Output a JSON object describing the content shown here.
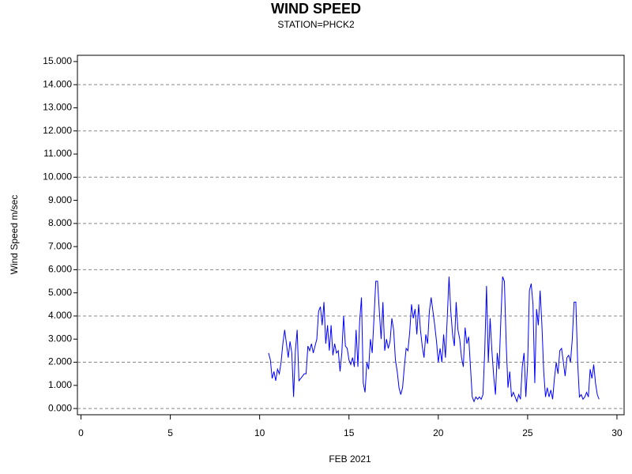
{
  "chart_data": {
    "type": "line",
    "title": "WIND SPEED",
    "subtitle": "STATION=PHCK2",
    "x_label": "FEB 2021",
    "y_label": "Wind Speed m/sec",
    "xlim": [
      -0.2,
      30.4
    ],
    "ylim": [
      -0.27,
      15.27
    ],
    "xticks": [
      0,
      5,
      10,
      15,
      20,
      25,
      30
    ],
    "yticks": [
      {
        "value": 0,
        "label": "0.000"
      },
      {
        "value": 1,
        "label": "1.000"
      },
      {
        "value": 2,
        "label": "2.000"
      },
      {
        "value": 3,
        "label": "3.000"
      },
      {
        "value": 4,
        "label": "4.000"
      },
      {
        "value": 5,
        "label": "5.000"
      },
      {
        "value": 6,
        "label": "6.000"
      },
      {
        "value": 7,
        "label": "7.000"
      },
      {
        "value": 8,
        "label": "8.000"
      },
      {
        "value": 9,
        "label": "9.000"
      },
      {
        "value": 10,
        "label": "10.000"
      },
      {
        "value": 11,
        "label": "11.000"
      },
      {
        "value": 12,
        "label": "12.000"
      },
      {
        "value": 13,
        "label": "13.000"
      },
      {
        "value": 14,
        "label": "14.000"
      },
      {
        "value": 15,
        "label": "15.000"
      }
    ],
    "grid_y": [
      0,
      2,
      4,
      6,
      8,
      10,
      12,
      14
    ],
    "series": [
      {
        "color": "#0000ff",
        "x": [
          10.5,
          10.6,
          10.7,
          10.8,
          10.9,
          11.0,
          11.1,
          11.2,
          11.3,
          11.4,
          11.5,
          11.6,
          11.7,
          11.8,
          11.9,
          12.0,
          12.1,
          12.2,
          12.5,
          12.6,
          12.7,
          12.8,
          12.9,
          13.0,
          13.1,
          13.2,
          13.3,
          13.4,
          13.5,
          13.6,
          13.7,
          13.8,
          13.9,
          14.0,
          14.1,
          14.2,
          14.3,
          14.4,
          14.5,
          14.6,
          14.7,
          14.8,
          14.9,
          15.0,
          15.1,
          15.2,
          15.3,
          15.4,
          15.5,
          15.6,
          15.7,
          15.8,
          15.9,
          16.0,
          16.1,
          16.2,
          16.3,
          16.4,
          16.5,
          16.6,
          16.7,
          16.8,
          16.9,
          17.0,
          17.1,
          17.2,
          17.3,
          17.4,
          17.5,
          17.6,
          17.7,
          17.8,
          17.9,
          18.0,
          18.1,
          18.2,
          18.3,
          18.4,
          18.5,
          18.6,
          18.7,
          18.8,
          18.9,
          19.0,
          19.1,
          19.2,
          19.3,
          19.4,
          19.5,
          19.6,
          19.7,
          19.8,
          19.9,
          20.0,
          20.1,
          20.2,
          20.3,
          20.4,
          20.5,
          20.6,
          20.7,
          20.8,
          20.9,
          21.0,
          21.1,
          21.2,
          21.3,
          21.4,
          21.5,
          21.6,
          21.7,
          21.8,
          21.9,
          22.0,
          22.1,
          22.2,
          22.3,
          22.4,
          22.5,
          22.6,
          22.7,
          22.8,
          22.9,
          23.0,
          23.1,
          23.2,
          23.3,
          23.4,
          23.5,
          23.6,
          23.7,
          23.8,
          23.9,
          24.0,
          24.1,
          24.2,
          24.3,
          24.4,
          24.5,
          24.6,
          24.7,
          24.8,
          24.9,
          25.0,
          25.1,
          25.2,
          25.3,
          25.4,
          25.5,
          25.6,
          25.7,
          25.8,
          25.9,
          26.0,
          26.1,
          26.2,
          26.3,
          26.4,
          26.5,
          26.6,
          26.7,
          26.8,
          26.9,
          27.0,
          27.1,
          27.2,
          27.3,
          27.4,
          27.5,
          27.6,
          27.7,
          27.8,
          27.9,
          28.0,
          28.1,
          28.2,
          28.3,
          28.4,
          28.5,
          28.6,
          28.7,
          28.8,
          28.9,
          29.0
        ],
        "values": [
          2.4,
          2.1,
          1.3,
          1.6,
          1.2,
          1.7,
          1.5,
          2.0,
          2.8,
          3.4,
          2.8,
          2.2,
          2.9,
          2.4,
          0.5,
          2.5,
          3.4,
          1.2,
          1.5,
          1.5,
          2.7,
          2.5,
          2.8,
          2.4,
          2.7,
          3.0,
          4.2,
          4.4,
          3.6,
          4.6,
          2.8,
          3.6,
          2.5,
          3.6,
          2.3,
          2.8,
          2.4,
          2.5,
          1.6,
          2.4,
          4.0,
          2.7,
          2.6,
          2.1,
          1.9,
          2.2,
          1.8,
          3.4,
          1.8,
          3.8,
          4.8,
          1.1,
          0.7,
          2.0,
          1.7,
          3.0,
          2.4,
          3.9,
          5.5,
          5.5,
          4.2,
          3.0,
          4.6,
          2.5,
          3.0,
          2.6,
          2.9,
          3.9,
          3.4,
          2.1,
          1.6,
          0.9,
          0.6,
          0.9,
          1.8,
          2.6,
          2.5,
          3.3,
          4.5,
          3.9,
          4.3,
          3.2,
          4.5,
          3.4,
          2.7,
          2.2,
          3.2,
          2.8,
          4.2,
          4.8,
          4.2,
          3.6,
          2.9,
          2.0,
          2.6,
          2.0,
          3.2,
          2.2,
          3.9,
          5.7,
          4.2,
          3.2,
          2.7,
          4.6,
          3.4,
          3.0,
          2.2,
          1.8,
          3.5,
          2.8,
          3.1,
          1.8,
          0.5,
          0.3,
          0.5,
          0.4,
          0.5,
          0.4,
          0.6,
          2.5,
          5.3,
          2.0,
          3.9,
          2.5,
          1.4,
          0.6,
          2.4,
          1.7,
          3.8,
          5.7,
          5.5,
          2.8,
          0.9,
          1.6,
          0.5,
          0.7,
          0.5,
          0.3,
          0.6,
          0.4,
          1.8,
          2.4,
          0.5,
          1.9,
          5.1,
          5.4,
          4.5,
          1.1,
          4.3,
          3.6,
          5.1,
          3.6,
          1.6,
          0.5,
          0.9,
          0.5,
          0.8,
          0.4,
          1.3,
          2.0,
          1.5,
          2.5,
          2.6,
          2.0,
          1.4,
          2.2,
          2.3,
          2.0,
          3.0,
          4.6,
          4.6,
          2.0,
          0.5,
          0.6,
          0.4,
          0.5,
          0.7,
          0.5,
          1.7,
          1.3,
          1.9,
          1.1,
          0.6,
          0.4
        ]
      }
    ]
  }
}
